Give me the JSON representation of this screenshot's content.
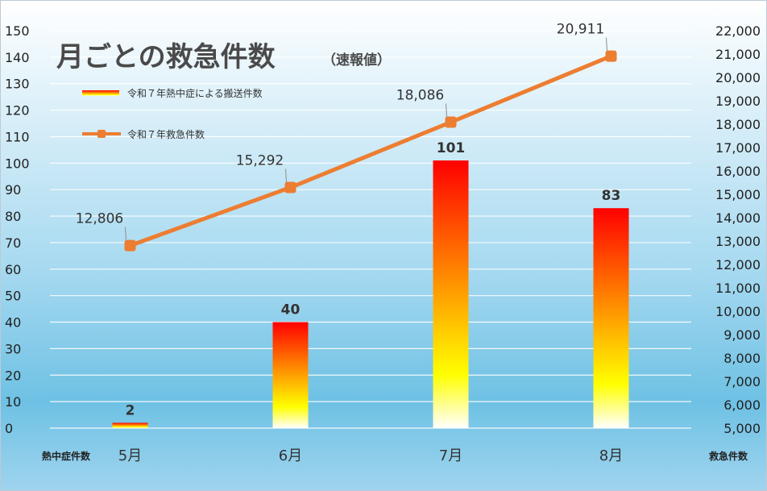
{
  "chart_data": {
    "type": "bar",
    "title": "月ごとの救急件数",
    "subtitle": "（速報値）",
    "categories": [
      "5月",
      "6月",
      "7月",
      "8月"
    ],
    "series": [
      {
        "name": "令和７年熱中症による搬送件数",
        "type": "bar",
        "axis": "left",
        "values": [
          2,
          40,
          101,
          83
        ]
      },
      {
        "name": "令和７年救急件数",
        "type": "line",
        "axis": "right",
        "values": [
          12806,
          15292,
          18086,
          20911
        ]
      }
    ],
    "bar_labels": [
      "2",
      "40",
      "101",
      "83"
    ],
    "line_labels": [
      "12,806",
      "15,292",
      "18,086",
      "20,911"
    ],
    "ylabel_left": "熱中症件数",
    "ylabel_right": "救急件数",
    "ylim_left": [
      0,
      150
    ],
    "ylim_right": [
      5000,
      22000
    ],
    "yticks_left": [
      "0",
      "10",
      "20",
      "30",
      "40",
      "50",
      "60",
      "70",
      "80",
      "90",
      "100",
      "110",
      "120",
      "130",
      "140",
      "150"
    ],
    "yticks_right": [
      "5,000",
      "6,000",
      "7,000",
      "8,000",
      "9,000",
      "10,000",
      "11,000",
      "12,000",
      "13,000",
      "14,000",
      "15,000",
      "16,000",
      "17,000",
      "18,000",
      "19,000",
      "20,000",
      "21,000",
      "22,000"
    ],
    "grid": true,
    "legend_position": "top-left",
    "colors": {
      "line": "#ed7d31",
      "bar_top": "#ff0000",
      "bar_mid": "#ffff00",
      "bar_bottom": "#ffffff",
      "background_top": "#ffffff",
      "background_bottom": "#6ec1e4"
    }
  }
}
